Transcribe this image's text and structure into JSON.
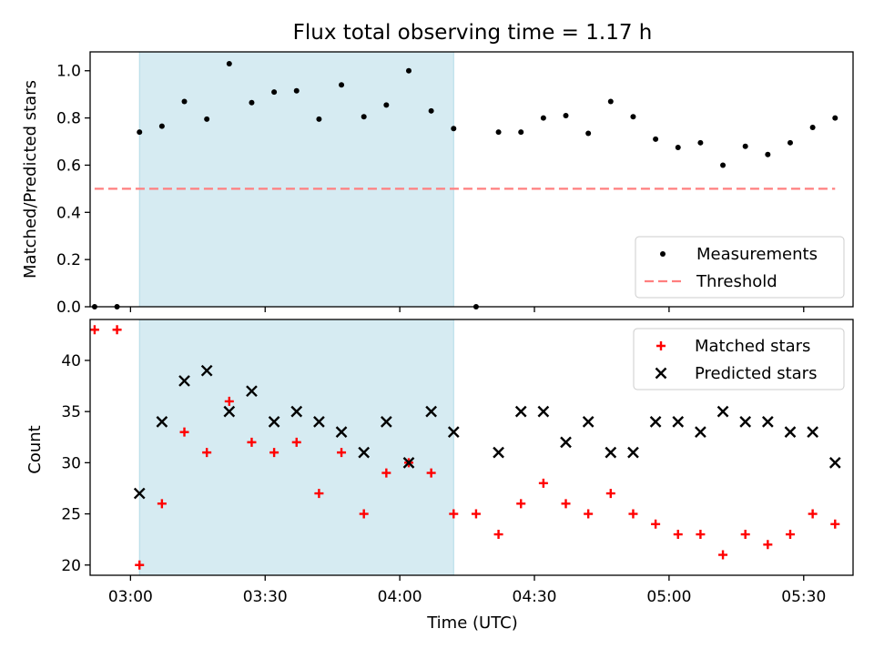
{
  "figure": {
    "title": "Flux total observing time = 1.17 h"
  },
  "colors": {
    "measurement": "#000000",
    "threshold": "#ff7f7f",
    "matched": "#ff0000",
    "predicted": "#000000",
    "highlight_band": "#add8e6"
  },
  "chart_data": [
    {
      "type": "scatter",
      "panel": "top",
      "title": "Flux total observing time = 1.17 h",
      "xlabel": "",
      "ylabel": "Matched/Predicted stars",
      "xlim": [
        "02:51",
        "05:41"
      ],
      "ylim": [
        0.0,
        1.08
      ],
      "yticks": [
        "0.0",
        "0.2",
        "0.4",
        "0.6",
        "0.8",
        "1.0"
      ],
      "highlight_band": {
        "from": "03:02",
        "to": "04:12"
      },
      "legend_position": "lower-right",
      "legend": [
        "Measurements",
        "Threshold"
      ],
      "series": [
        {
          "name": "Measurements",
          "marker": "dot",
          "x": [
            "02:52",
            "02:57",
            "03:02",
            "03:07",
            "03:12",
            "03:17",
            "03:22",
            "03:27",
            "03:32",
            "03:37",
            "03:42",
            "03:47",
            "03:52",
            "03:57",
            "04:02",
            "04:07",
            "04:12",
            "04:17",
            "04:22",
            "04:27",
            "04:32",
            "04:37",
            "04:42",
            "04:47",
            "04:52",
            "04:57",
            "05:02",
            "05:07",
            "05:12",
            "05:17",
            "05:22",
            "05:27",
            "05:32",
            "05:37"
          ],
          "y": [
            0.0,
            0.0,
            0.74,
            0.765,
            0.87,
            0.795,
            1.03,
            0.865,
            0.91,
            0.915,
            0.795,
            0.94,
            0.805,
            0.855,
            1.0,
            0.83,
            0.755,
            0.0,
            0.74,
            0.74,
            0.8,
            0.81,
            0.735,
            0.87,
            0.805,
            0.71,
            0.675,
            0.695,
            0.6,
            0.68,
            0.645,
            0.695,
            0.76,
            0.8
          ]
        },
        {
          "name": "Threshold",
          "marker": "dashed-line",
          "x": [
            "02:52",
            "05:37"
          ],
          "y": [
            0.5,
            0.5
          ]
        }
      ]
    },
    {
      "type": "scatter",
      "panel": "bottom",
      "xlabel": "Time (UTC)",
      "ylabel": "Count",
      "xlim": [
        "02:51",
        "05:41"
      ],
      "ylim": [
        19,
        44
      ],
      "xticks": [
        "03:00",
        "03:30",
        "04:00",
        "04:30",
        "05:00",
        "05:30"
      ],
      "yticks": [
        "20",
        "25",
        "30",
        "35",
        "40"
      ],
      "highlight_band": {
        "from": "03:02",
        "to": "04:12"
      },
      "legend_position": "upper-right",
      "legend": [
        "Matched stars",
        "Predicted stars"
      ],
      "series": [
        {
          "name": "Matched stars",
          "marker": "plus",
          "x": [
            "02:52",
            "02:57",
            "03:02",
            "03:07",
            "03:12",
            "03:17",
            "03:22",
            "03:27",
            "03:32",
            "03:37",
            "03:42",
            "03:47",
            "03:52",
            "03:57",
            "04:02",
            "04:07",
            "04:12",
            "04:17",
            "04:22",
            "04:27",
            "04:32",
            "04:37",
            "04:42",
            "04:47",
            "04:52",
            "04:57",
            "05:02",
            "05:07",
            "05:12",
            "05:17",
            "05:22",
            "05:27",
            "05:32",
            "05:37"
          ],
          "y": [
            43,
            43,
            20,
            26,
            33,
            31,
            36,
            32,
            31,
            32,
            27,
            31,
            25,
            29,
            30,
            29,
            25,
            25,
            23,
            26,
            28,
            26,
            25,
            27,
            25,
            24,
            23,
            23,
            21,
            23,
            22,
            23,
            25,
            24
          ]
        },
        {
          "name": "Predicted stars",
          "marker": "cross",
          "x": [
            "03:02",
            "03:07",
            "03:12",
            "03:17",
            "03:22",
            "03:27",
            "03:32",
            "03:37",
            "03:42",
            "03:47",
            "03:52",
            "03:57",
            "04:02",
            "04:07",
            "04:12",
            "04:22",
            "04:27",
            "04:32",
            "04:37",
            "04:42",
            "04:47",
            "04:52",
            "04:57",
            "05:02",
            "05:07",
            "05:12",
            "05:17",
            "05:22",
            "05:27",
            "05:32",
            "05:37"
          ],
          "y": [
            27,
            34,
            38,
            39,
            35,
            37,
            34,
            35,
            34,
            33,
            31,
            34,
            30,
            35,
            33,
            31,
            35,
            35,
            32,
            34,
            31,
            31,
            34,
            34,
            33,
            35,
            34,
            34,
            33,
            33,
            30
          ]
        }
      ]
    }
  ]
}
